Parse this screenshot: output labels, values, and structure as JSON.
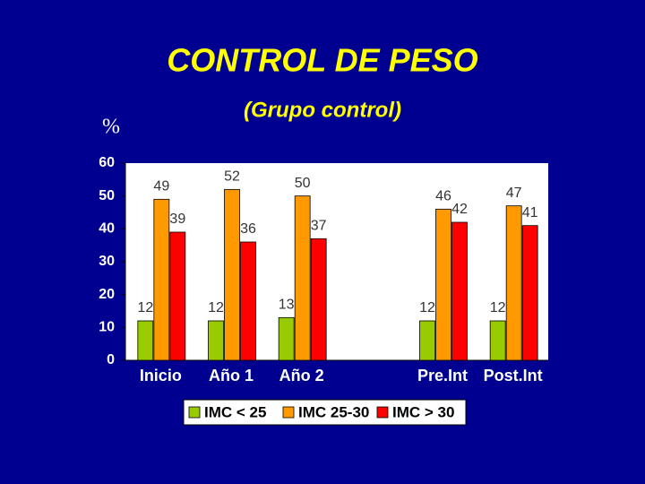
{
  "chart_data": {
    "type": "bar",
    "title": "CONTROL DE PESO",
    "subtitle": "(Grupo control)",
    "y_label": "%",
    "categories": [
      "Inicio",
      "Año 1",
      "Año 2",
      null,
      "Pre.Int",
      "Post.Int"
    ],
    "series": [
      {
        "name": "IMC < 25",
        "color": "#99cc00",
        "values": [
          12,
          12,
          13,
          null,
          12,
          12
        ]
      },
      {
        "name": "IMC 25-30",
        "color": "#ff9900",
        "values": [
          49,
          52,
          50,
          null,
          46,
          47
        ]
      },
      {
        "name": "IMC > 30",
        "color": "#ff0000",
        "values": [
          39,
          36,
          37,
          null,
          42,
          41
        ]
      }
    ],
    "ylim": [
      0,
      60
    ],
    "yticks": [
      0,
      10,
      20,
      30,
      40,
      50,
      60
    ],
    "grid": false,
    "legend": "bottom"
  }
}
